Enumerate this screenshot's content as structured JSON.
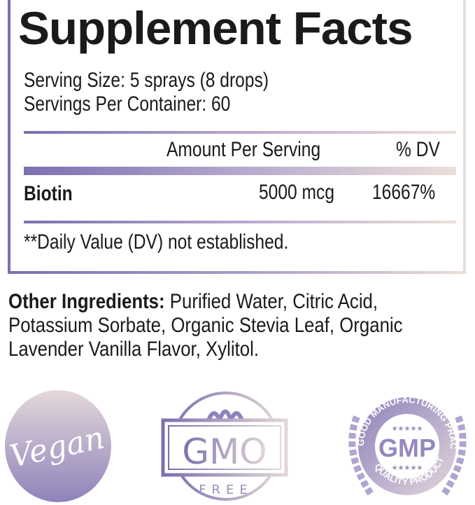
{
  "title": "Supplement Facts",
  "serving_size": "Serving Size: 5 sprays (8 drops)",
  "servings_per_container": "Servings Per Container: 60",
  "table": {
    "headers": {
      "amount": "Amount Per Serving",
      "dv": "% DV"
    },
    "rows": [
      {
        "name": "Biotin",
        "amount": "5000 mcg",
        "dv": "16667%"
      }
    ]
  },
  "footnote": "**Daily Value (DV) not established.",
  "other_ingredients": {
    "label": "Other Ingredients:",
    "lines": [
      " Purified Water, Citric Acid,",
      "Potassium Sorbate, Organic Stevia Leaf, Organic",
      "Lavender Vanilla Flavor, Xylitol."
    ]
  },
  "badges": {
    "vegan": "Vegan",
    "gmo": {
      "main": "GMO",
      "sub": "FREE"
    },
    "gmp": {
      "main": "GMP",
      "top": "GOOD MANUFACTURING PRACTICE",
      "bottom": "QUALITY PRODUCT",
      "stars": "★★★★★"
    }
  },
  "colors": {
    "accent": "#8b80b5",
    "accent_light": "#e9ddd6"
  }
}
